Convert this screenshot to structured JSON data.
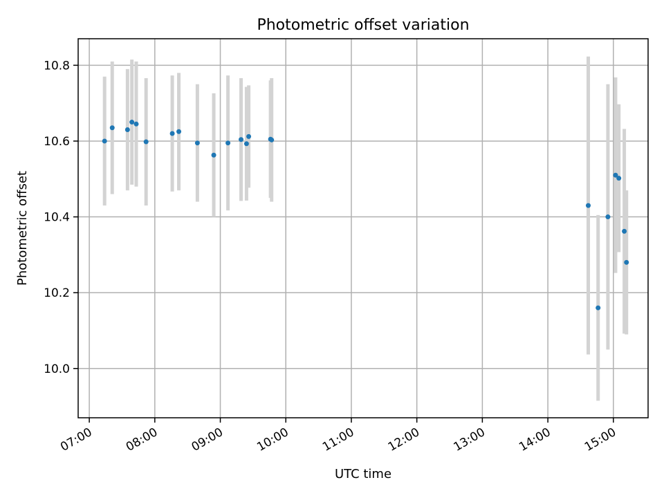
{
  "chart_data": {
    "type": "scatter",
    "title": "Photometric offset variation",
    "xlabel": "UTC time",
    "ylabel": "Photometric offset",
    "x_tick_labels": [
      "07:00",
      "08:00",
      "09:00",
      "10:00",
      "11:00",
      "12:00",
      "13:00",
      "14:00",
      "15:00"
    ],
    "x_ticks_hours": [
      7,
      8,
      9,
      10,
      11,
      12,
      13,
      14,
      15
    ],
    "y_tick_labels": [
      "10.0",
      "10.2",
      "10.4",
      "10.6",
      "10.8"
    ],
    "y_ticks": [
      10.0,
      10.2,
      10.4,
      10.6,
      10.8
    ],
    "xlim_hours": [
      6.83,
      15.53
    ],
    "ylim": [
      9.87,
      10.87
    ],
    "grid": true,
    "legend": "none",
    "colors": {
      "point": "#1f77b4",
      "errorbar": "#d3d3d3"
    },
    "points": [
      {
        "x": "07:14",
        "y": 10.6,
        "err": 0.17
      },
      {
        "x": "07:21",
        "y": 10.635,
        "err": 0.175
      },
      {
        "x": "07:35",
        "y": 10.63,
        "err": 0.16
      },
      {
        "x": "07:39",
        "y": 10.65,
        "err": 0.165
      },
      {
        "x": "07:43",
        "y": 10.645,
        "err": 0.165
      },
      {
        "x": "07:52",
        "y": 10.598,
        "err": 0.168
      },
      {
        "x": "08:16",
        "y": 10.62,
        "err": 0.153
      },
      {
        "x": "08:22",
        "y": 10.625,
        "err": 0.155
      },
      {
        "x": "08:39",
        "y": 10.595,
        "err": 0.155
      },
      {
        "x": "08:54",
        "y": 10.563,
        "err": 0.163
      },
      {
        "x": "09:07",
        "y": 10.595,
        "err": 0.178
      },
      {
        "x": "09:19",
        "y": 10.604,
        "err": 0.162
      },
      {
        "x": "09:24",
        "y": 10.593,
        "err": 0.15
      },
      {
        "x": "09:26",
        "y": 10.612,
        "err": 0.135
      },
      {
        "x": "09:46",
        "y": 10.605,
        "err": 0.155
      },
      {
        "x": "09:47",
        "y": 10.603,
        "err": 0.163
      },
      {
        "x": "14:37",
        "y": 10.43,
        "err": 0.393
      },
      {
        "x": "14:46",
        "y": 10.16,
        "err": 0.245
      },
      {
        "x": "14:55",
        "y": 10.4,
        "err": 0.35
      },
      {
        "x": "15:02",
        "y": 10.51,
        "err": 0.258
      },
      {
        "x": "15:05",
        "y": 10.502,
        "err": 0.195
      },
      {
        "x": "15:10",
        "y": 10.362,
        "err": 0.27
      },
      {
        "x": "15:12",
        "y": 10.28,
        "err": 0.19
      }
    ]
  }
}
